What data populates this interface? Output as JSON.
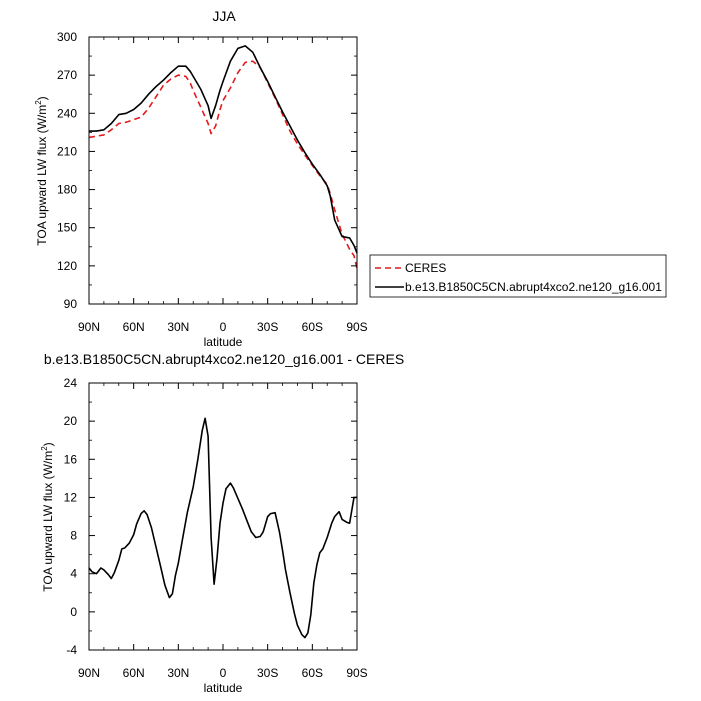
{
  "chart_data": [
    {
      "type": "line",
      "title": "JJA",
      "xlabel": "latitude",
      "ylabel": "TOA upward LW flux (W/m",
      "ylabel_sup": "2",
      "ylabel_end": ")",
      "xlim": [
        90,
        -90
      ],
      "ylim": [
        90,
        300
      ],
      "xticks": [
        90,
        60,
        30,
        0,
        -30,
        -60,
        -90
      ],
      "xticklabels": [
        "90N",
        "60N",
        "30N",
        "0",
        "30S",
        "60S",
        "90S"
      ],
      "yticks": [
        90,
        120,
        150,
        180,
        210,
        240,
        270,
        300
      ],
      "yticklabels": [
        "90",
        "120",
        "150",
        "180",
        "210",
        "240",
        "270",
        "300"
      ],
      "legend_position": "right, outside plot",
      "series": [
        {
          "name": "CERES",
          "color": "#e41a1c",
          "dash": "dashed",
          "x": [
            90,
            85,
            80,
            75,
            70,
            65,
            60,
            55,
            50,
            45,
            40,
            35,
            30,
            25,
            22,
            20,
            15,
            10,
            8,
            5,
            2,
            0,
            -5,
            -10,
            -15,
            -20,
            -25,
            -30,
            -35,
            -40,
            -45,
            -50,
            -55,
            -60,
            -65,
            -70,
            -72,
            -75,
            -80,
            -85,
            -88,
            -90
          ],
          "y": [
            221,
            222,
            223,
            227,
            232,
            233,
            235,
            237,
            244,
            253,
            262,
            267,
            270,
            269,
            264,
            258,
            245,
            232,
            224,
            230,
            243,
            250,
            260,
            272,
            280,
            281,
            276,
            264,
            252,
            239,
            226,
            216,
            207,
            199,
            191,
            184,
            177,
            164,
            145,
            133,
            128,
            118
          ]
        },
        {
          "name": "b.e13.B1850C5CN.abrupt4xco2.ne120_g16.001",
          "color": "#000000",
          "dash": "solid",
          "x": [
            90,
            85,
            80,
            75,
            70,
            65,
            60,
            55,
            50,
            45,
            40,
            35,
            30,
            25,
            22,
            20,
            15,
            10,
            8,
            5,
            2,
            0,
            -5,
            -10,
            -15,
            -20,
            -25,
            -30,
            -35,
            -40,
            -45,
            -50,
            -55,
            -60,
            -65,
            -70,
            -72,
            -75,
            -80,
            -85,
            -88,
            -90
          ],
          "y": [
            226,
            226,
            227,
            232,
            239,
            240,
            243,
            248,
            255,
            261,
            266,
            272,
            277,
            277,
            273,
            269,
            259,
            246,
            236,
            246,
            258,
            265,
            281,
            291,
            293,
            288,
            276,
            265,
            253,
            241,
            230,
            219,
            209,
            200,
            192,
            183,
            175,
            156,
            143,
            142,
            136,
            130
          ]
        }
      ]
    },
    {
      "type": "line",
      "title": "b.e13.B1850C5CN.abrupt4xco2.ne120_g16.001 - CERES",
      "xlabel": "latitude",
      "ylabel": "TOA upward LW flux (W/m",
      "ylabel_sup": "2",
      "ylabel_end": ")",
      "xlim": [
        90,
        -90
      ],
      "ylim": [
        -4,
        24
      ],
      "xticks": [
        90,
        60,
        30,
        0,
        -30,
        -60,
        -90
      ],
      "xticklabels": [
        "90N",
        "60N",
        "30N",
        "0",
        "30S",
        "60S",
        "90S"
      ],
      "yticks": [
        -4,
        0,
        4,
        8,
        12,
        16,
        20,
        24
      ],
      "yticklabels": [
        "-4",
        "0",
        "4",
        "8",
        "12",
        "16",
        "20",
        "24"
      ],
      "series": [
        {
          "name": "",
          "color": "#000000",
          "dash": "solid",
          "x": [
            90,
            88,
            85,
            82,
            80,
            77,
            75,
            73,
            70,
            68,
            66,
            63,
            60,
            58,
            55,
            53,
            51,
            48,
            45,
            42,
            39,
            36,
            34,
            32,
            30,
            27,
            24,
            20,
            17,
            14,
            12,
            10,
            8,
            6,
            4,
            2,
            0,
            -2,
            -5,
            -7,
            -10,
            -13,
            -16,
            -19,
            -22,
            -25,
            -27,
            -30,
            -32,
            -35,
            -38,
            -40,
            -42,
            -45,
            -48,
            -50,
            -53,
            -55,
            -57,
            -59,
            -61,
            -63,
            -65,
            -67,
            -70,
            -73,
            -75,
            -78,
            -80,
            -83,
            -85,
            -88,
            -90
          ],
          "y": [
            4.6,
            4.2,
            4.0,
            4.6,
            4.4,
            3.9,
            3.5,
            4.1,
            5.4,
            6.6,
            6.7,
            7.2,
            8.1,
            9.2,
            10.3,
            10.6,
            10.2,
            8.8,
            6.8,
            4.8,
            2.8,
            1.5,
            1.9,
            3.8,
            5.1,
            7.8,
            10.4,
            13.1,
            15.9,
            19.0,
            20.3,
            18.4,
            7.8,
            2.9,
            5.6,
            9.3,
            11.4,
            12.9,
            13.5,
            13.0,
            11.9,
            10.8,
            9.6,
            8.4,
            7.8,
            7.9,
            8.4,
            10.0,
            10.3,
            10.4,
            8.3,
            6.4,
            4.4,
            2.0,
            -0.2,
            -1.4,
            -2.4,
            -2.7,
            -2.2,
            -0.3,
            3.0,
            4.9,
            6.2,
            6.6,
            7.8,
            9.3,
            10.0,
            10.5,
            9.7,
            9.4,
            9.3,
            12.0,
            12.0
          ]
        }
      ]
    }
  ]
}
